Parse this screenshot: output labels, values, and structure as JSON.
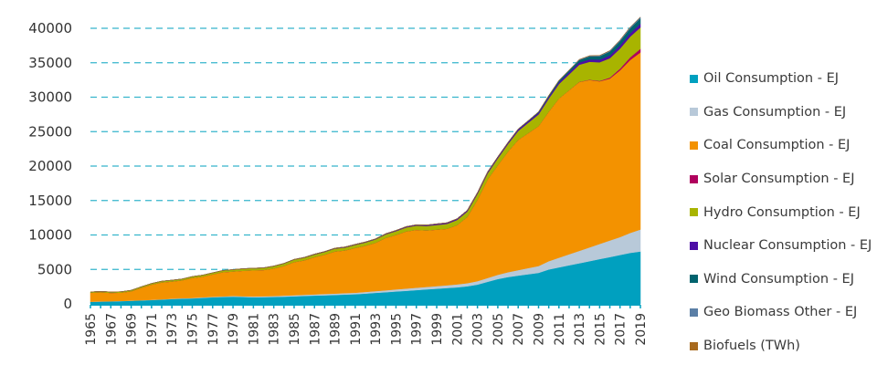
{
  "chart_data": {
    "type": "area",
    "stacked": true,
    "title": "",
    "xlabel": "",
    "ylabel": "",
    "ylim": [
      0,
      40000
    ],
    "yticks": [
      0,
      5000,
      10000,
      15000,
      20000,
      25000,
      30000,
      35000,
      40000
    ],
    "ytick_labels": [
      "0",
      "5000",
      "10000",
      "15000",
      "20000",
      "25000",
      "30000",
      "35000",
      "40000"
    ],
    "grid": "horizontal-dashed",
    "legend_position": "right",
    "x": [
      1965,
      1966,
      1967,
      1968,
      1969,
      1970,
      1971,
      1972,
      1973,
      1974,
      1975,
      1976,
      1977,
      1978,
      1979,
      1980,
      1981,
      1982,
      1983,
      1984,
      1985,
      1986,
      1987,
      1988,
      1989,
      1990,
      1991,
      1992,
      1993,
      1994,
      1995,
      1996,
      1997,
      1998,
      1999,
      2000,
      2001,
      2002,
      2003,
      2004,
      2005,
      2006,
      2007,
      2008,
      2009,
      2010,
      2011,
      2012,
      2013,
      2014,
      2015,
      2016,
      2017,
      2018,
      2019
    ],
    "xtick_labels": [
      "1965",
      "1967",
      "1969",
      "1971",
      "1973",
      "1975",
      "1977",
      "1979",
      "1981",
      "1983",
      "1985",
      "1987",
      "1989",
      "1991",
      "1993",
      "1995",
      "1997",
      "1999",
      "2001",
      "2003",
      "2005",
      "2007",
      "2009",
      "2011",
      "2013",
      "2015",
      "2017",
      "2019"
    ],
    "series": [
      {
        "name": "Oil Consumption - EJ",
        "color": "#00a0bf",
        "values": [
          300,
          330,
          360,
          400,
          450,
          500,
          560,
          620,
          700,
          760,
          800,
          880,
          950,
          1000,
          1050,
          1000,
          950,
          980,
          1000,
          1050,
          1100,
          1150,
          1200,
          1250,
          1300,
          1350,
          1400,
          1500,
          1600,
          1700,
          1800,
          1900,
          2000,
          2100,
          2200,
          2300,
          2400,
          2550,
          2800,
          3200,
          3600,
          3900,
          4100,
          4300,
          4500,
          5000,
          5300,
          5600,
          5900,
          6200,
          6500,
          6800,
          7100,
          7400,
          7600
        ]
      },
      {
        "name": "Gas Consumption - EJ",
        "color": "#b8c9d9",
        "values": [
          20,
          22,
          25,
          28,
          30,
          35,
          40,
          45,
          50,
          55,
          60,
          70,
          80,
          90,
          100,
          110,
          120,
          130,
          140,
          150,
          160,
          170,
          180,
          190,
          200,
          210,
          220,
          240,
          260,
          280,
          300,
          320,
          340,
          360,
          380,
          400,
          430,
          460,
          500,
          560,
          620,
          700,
          800,
          900,
          1000,
          1200,
          1400,
          1600,
          1800,
          2000,
          2200,
          2400,
          2600,
          2900,
          3200
        ]
      },
      {
        "name": "Coal Consumption - EJ",
        "color": "#f39200",
        "values": [
          1300,
          1330,
          1220,
          1200,
          1350,
          1800,
          2200,
          2450,
          2500,
          2600,
          2900,
          3000,
          3250,
          3500,
          3550,
          3700,
          3800,
          3800,
          4000,
          4300,
          4800,
          5000,
          5400,
          5700,
          6100,
          6200,
          6500,
          6700,
          7000,
          7600,
          7900,
          8300,
          8400,
          8200,
          8200,
          8200,
          8600,
          9600,
          11800,
          14300,
          15900,
          17500,
          18900,
          19600,
          20300,
          21700,
          23100,
          23800,
          24500,
          24300,
          23600,
          23500,
          24200,
          25100,
          25700
        ]
      },
      {
        "name": "Solar Consumption - EJ",
        "color": "#b0005d",
        "values": [
          0,
          0,
          0,
          0,
          0,
          0,
          0,
          0,
          0,
          0,
          0,
          0,
          0,
          0,
          0,
          0,
          0,
          0,
          0,
          0,
          0,
          0,
          0,
          0,
          0,
          0,
          0,
          0,
          0,
          0,
          0,
          0,
          0,
          0,
          0,
          0,
          0,
          0,
          0,
          0,
          0,
          0,
          0,
          0,
          0,
          0,
          5,
          10,
          20,
          40,
          70,
          150,
          250,
          400,
          520
        ]
      },
      {
        "name": "Hydro Consumption - EJ",
        "color": "#a8b400",
        "values": [
          120,
          125,
          130,
          135,
          140,
          150,
          160,
          170,
          180,
          190,
          200,
          210,
          220,
          240,
          260,
          270,
          280,
          300,
          320,
          340,
          360,
          380,
          390,
          400,
          420,
          430,
          450,
          470,
          500,
          520,
          550,
          580,
          620,
          650,
          680,
          720,
          760,
          800,
          850,
          900,
          1000,
          1100,
          1300,
          1500,
          1700,
          1900,
          2100,
          2300,
          2500,
          2600,
          2700,
          2800,
          2900,
          3000,
          3100
        ]
      },
      {
        "name": "Nuclear Consumption - EJ",
        "color": "#4d0ea5",
        "values": [
          0,
          0,
          0,
          0,
          0,
          0,
          5,
          8,
          10,
          12,
          15,
          18,
          20,
          22,
          25,
          28,
          30,
          35,
          40,
          45,
          50,
          55,
          60,
          65,
          70,
          75,
          80,
          85,
          90,
          100,
          110,
          120,
          130,
          140,
          150,
          160,
          170,
          180,
          190,
          200,
          210,
          220,
          230,
          240,
          250,
          260,
          280,
          300,
          320,
          350,
          380,
          420,
          460,
          500,
          540
        ]
      },
      {
        "name": "Wind Consumption - EJ",
        "color": "#00636e",
        "values": [
          0,
          0,
          0,
          0,
          0,
          0,
          0,
          0,
          0,
          0,
          0,
          0,
          0,
          0,
          0,
          0,
          0,
          0,
          0,
          0,
          0,
          0,
          0,
          0,
          0,
          0,
          0,
          0,
          0,
          0,
          0,
          0,
          0,
          0,
          0,
          0,
          2,
          4,
          6,
          10,
          15,
          25,
          40,
          60,
          100,
          150,
          200,
          270,
          350,
          420,
          480,
          550,
          620,
          700,
          780
        ]
      },
      {
        "name": "Geo Biomass Other - EJ",
        "color": "#5b7fa6",
        "values": [
          0,
          0,
          0,
          0,
          0,
          0,
          0,
          0,
          0,
          0,
          0,
          0,
          0,
          0,
          0,
          0,
          0,
          0,
          0,
          0,
          0,
          0,
          0,
          0,
          0,
          0,
          0,
          0,
          0,
          0,
          0,
          0,
          0,
          0,
          0,
          0,
          0,
          0,
          0,
          5,
          10,
          15,
          20,
          25,
          30,
          40,
          50,
          60,
          80,
          100,
          120,
          140,
          160,
          180,
          200
        ]
      },
      {
        "name": "Biofuels (TWh)",
        "color": "#a86a1e",
        "values": [
          0,
          0,
          0,
          0,
          0,
          0,
          0,
          0,
          0,
          0,
          0,
          0,
          0,
          0,
          0,
          0,
          0,
          0,
          0,
          0,
          0,
          0,
          0,
          0,
          0,
          0,
          0,
          0,
          0,
          0,
          0,
          0,
          0,
          0,
          0,
          0,
          0,
          0,
          0,
          0,
          0,
          0,
          0,
          0,
          0,
          0,
          0,
          0,
          0,
          0,
          0,
          0,
          0,
          0,
          0
        ]
      }
    ]
  }
}
